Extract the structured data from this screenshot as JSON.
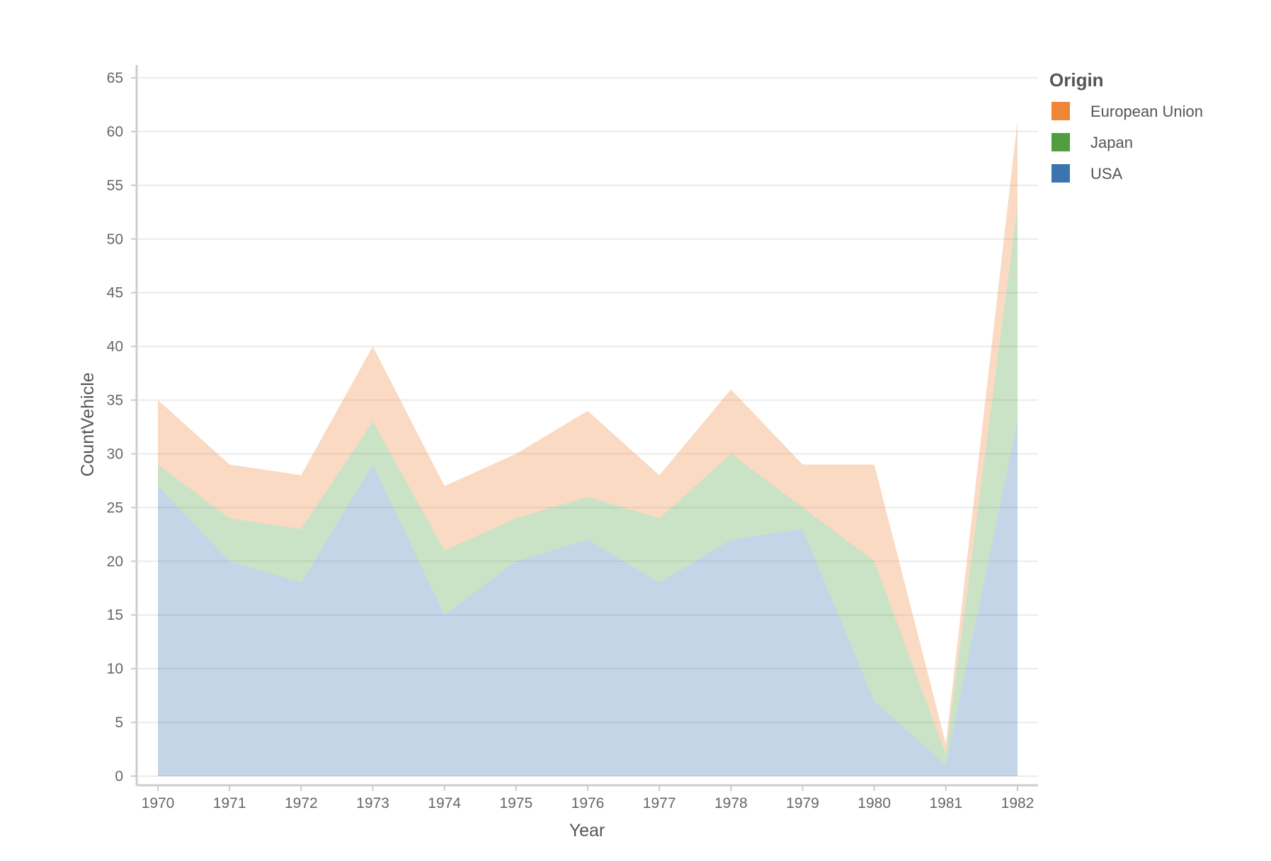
{
  "chart_data": {
    "type": "area",
    "stacked": true,
    "xlabel": "Year",
    "ylabel": "CountVehicle",
    "ylim": [
      0,
      65
    ],
    "yticks": [
      0,
      5,
      10,
      15,
      20,
      25,
      30,
      35,
      40,
      45,
      50,
      55,
      60,
      65
    ],
    "x": [
      "1970",
      "1971",
      "1972",
      "1973",
      "1974",
      "1975",
      "1976",
      "1977",
      "1978",
      "1979",
      "1980",
      "1981",
      "1982"
    ],
    "grid": true,
    "legend": {
      "title": "Origin",
      "position": "top-right"
    },
    "series": [
      {
        "name": "USA",
        "color": "#3b75af",
        "values": [
          27,
          20,
          18,
          29,
          15,
          20,
          22,
          18,
          22,
          23,
          7,
          1,
          33
        ]
      },
      {
        "name": "Japan",
        "color": "#519e3e",
        "values": [
          2,
          4,
          5,
          4,
          6,
          4,
          4,
          6,
          8,
          2,
          13,
          1,
          20
        ]
      },
      {
        "name": "European Union",
        "color": "#ef8636",
        "values": [
          6,
          5,
          5,
          7,
          6,
          6,
          8,
          4,
          6,
          4,
          9,
          1,
          8
        ]
      }
    ],
    "legend_order": [
      "European Union",
      "Japan",
      "USA"
    ]
  }
}
